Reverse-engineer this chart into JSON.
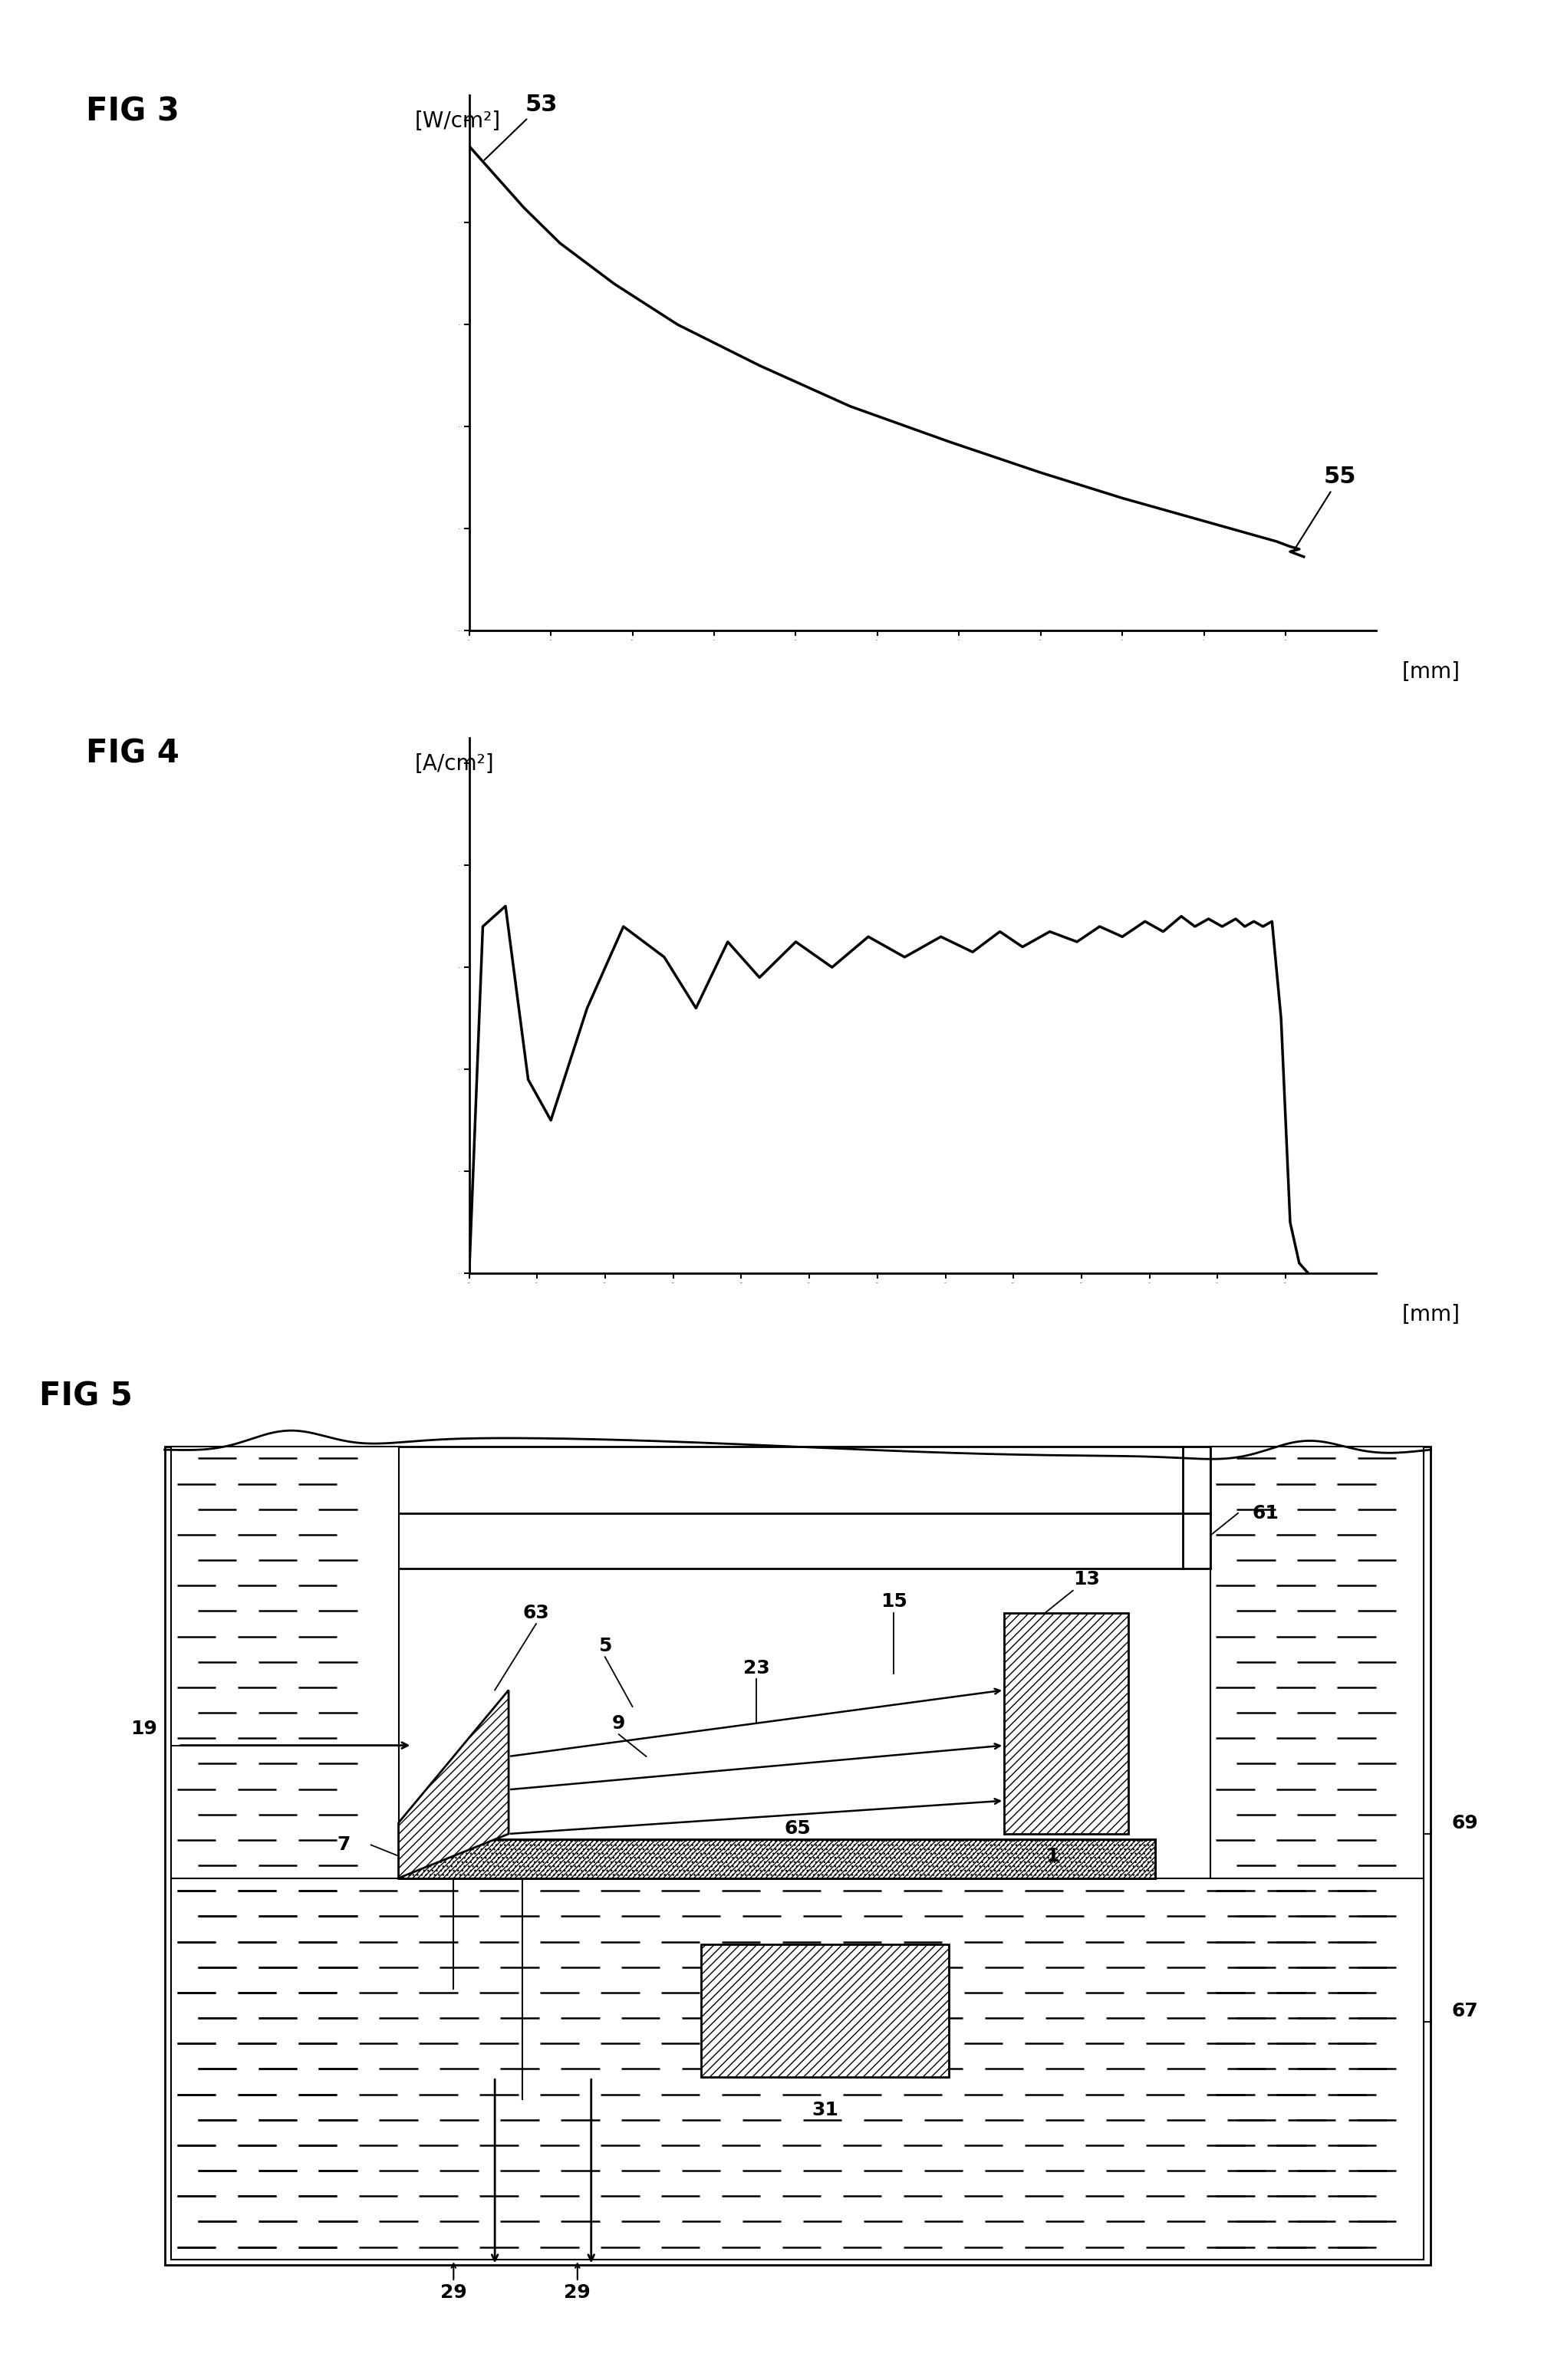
{
  "fig3_title": "FIG 3",
  "fig4_title": "FIG 4",
  "fig5_title": "FIG 5",
  "fig3_ylabel": "[W/cm²]",
  "fig4_ylabel": "[A/cm²]",
  "xlabel": "[mm]",
  "fig3_label53": "53",
  "fig3_label55": "55",
  "fig3_curve_x": [
    0.0,
    0.01,
    0.03,
    0.06,
    0.1,
    0.16,
    0.23,
    0.32,
    0.42,
    0.53,
    0.63,
    0.72,
    0.8,
    0.86,
    0.89,
    0.905,
    0.915,
    0.905,
    0.92
  ],
  "fig3_curve_y": [
    0.95,
    0.93,
    0.89,
    0.83,
    0.76,
    0.68,
    0.6,
    0.52,
    0.44,
    0.37,
    0.31,
    0.26,
    0.22,
    0.19,
    0.175,
    0.165,
    0.16,
    0.155,
    0.145
  ],
  "fig4_curve_x": [
    0.0,
    0.015,
    0.04,
    0.065,
    0.09,
    0.13,
    0.17,
    0.215,
    0.25,
    0.285,
    0.32,
    0.36,
    0.4,
    0.44,
    0.48,
    0.52,
    0.555,
    0.585,
    0.61,
    0.64,
    0.67,
    0.695,
    0.72,
    0.745,
    0.765,
    0.785,
    0.8,
    0.815,
    0.83,
    0.845,
    0.855,
    0.865,
    0.875,
    0.885,
    0.895,
    0.905,
    0.915,
    0.925
  ],
  "fig4_curve_y": [
    0.0,
    0.68,
    0.72,
    0.38,
    0.3,
    0.52,
    0.68,
    0.62,
    0.52,
    0.65,
    0.58,
    0.65,
    0.6,
    0.66,
    0.62,
    0.66,
    0.63,
    0.67,
    0.64,
    0.67,
    0.65,
    0.68,
    0.66,
    0.69,
    0.67,
    0.7,
    0.68,
    0.695,
    0.68,
    0.695,
    0.68,
    0.69,
    0.68,
    0.69,
    0.5,
    0.1,
    0.02,
    0.0
  ],
  "background_color": "#ffffff",
  "line_color": "#000000",
  "label_fontsize": 20,
  "title_fontsize": 30,
  "annotation_fontsize": 22
}
